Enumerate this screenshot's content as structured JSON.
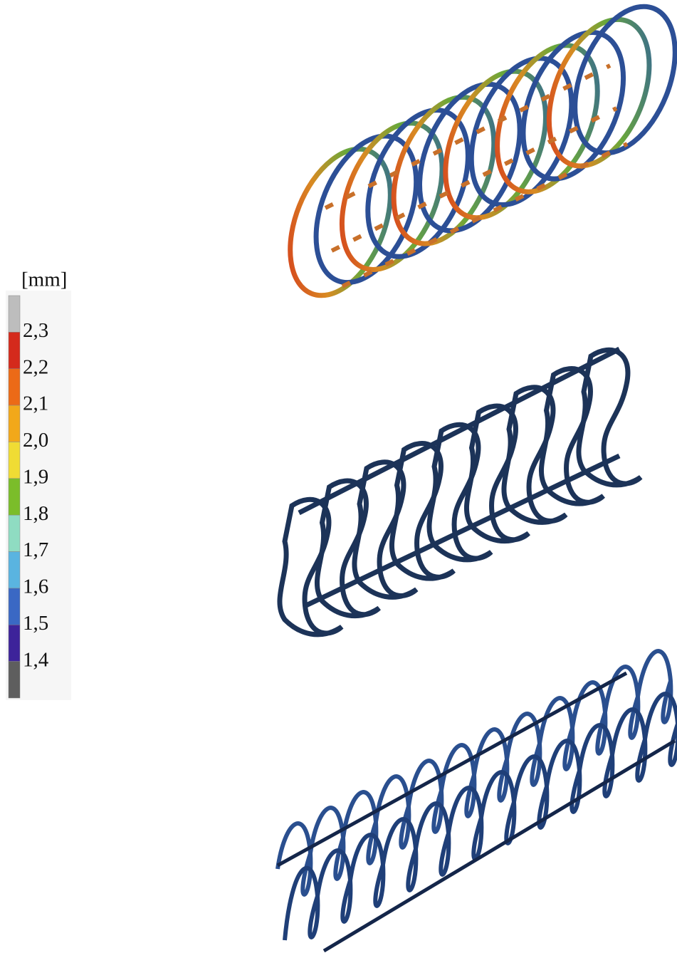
{
  "legend": {
    "unit": "[mm]",
    "labels": [
      "2,3",
      "2,2",
      "2,1",
      "2,0",
      "1,9",
      "1,8",
      "1,7",
      "1,6",
      "1,5",
      "1,4"
    ],
    "colors": [
      "#bdbdbd",
      "#d42a1c",
      "#ec6a17",
      "#f2a81a",
      "#f0dc34",
      "#7bbd2a",
      "#8fdcc2",
      "#5ab4e0",
      "#3a68c4",
      "#3d239a",
      "#5e5e5e"
    ]
  }
}
